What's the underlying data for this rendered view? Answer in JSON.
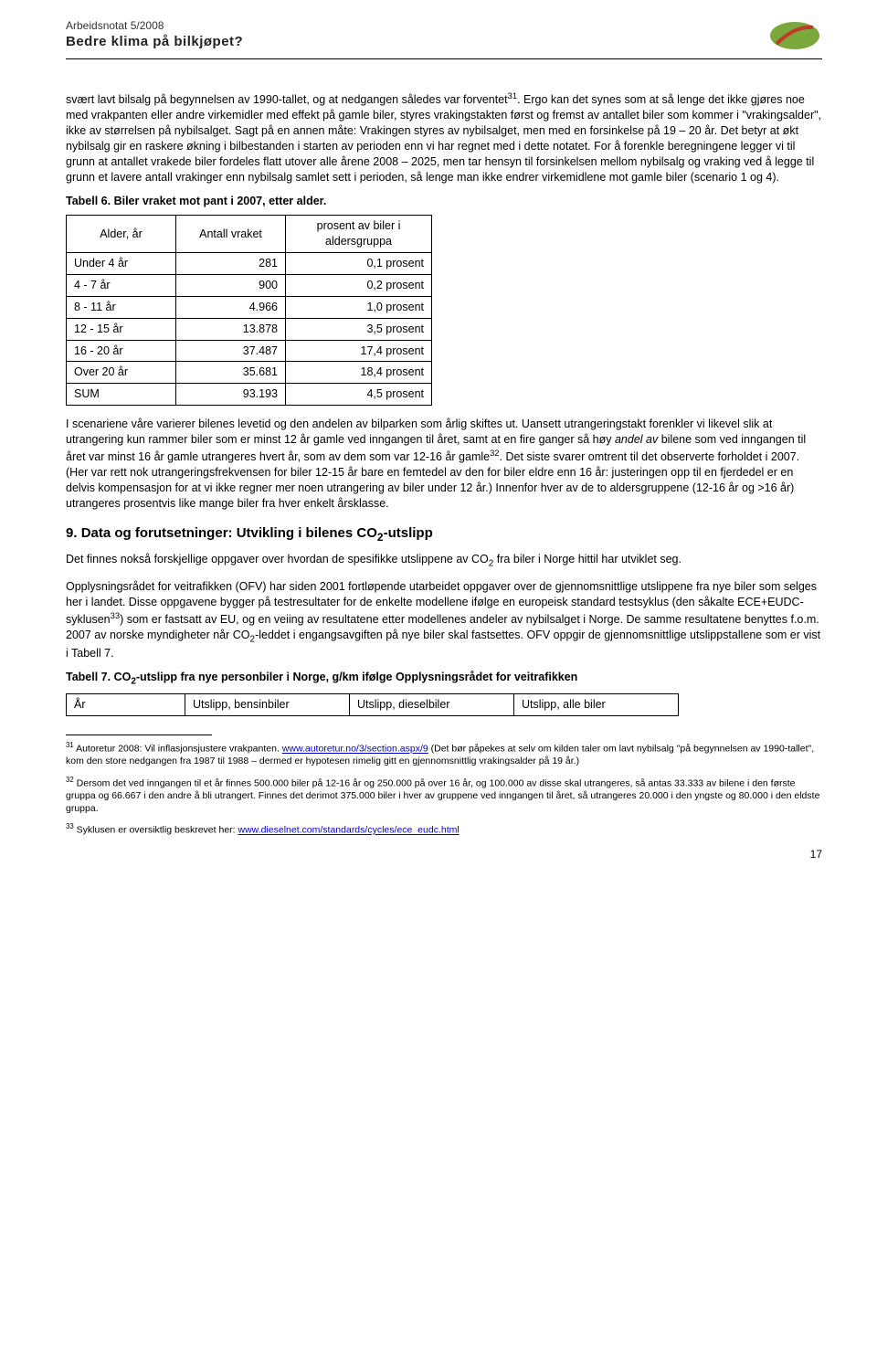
{
  "header": {
    "note": "Arbeidsnotat 5/2008",
    "title": "Bedre klima på bilkjøpet?"
  },
  "para1": "svært lavt bilsalg på begynnelsen av 1990-tallet, og at nedgangen således var forventet",
  "para1_fn": "31",
  "para1_tail": ". Ergo kan det synes som at så lenge det ikke gjøres noe med vrakpanten eller andre virkemidler med effekt på gamle biler, styres vrakingstakten først og fremst av antallet biler som kommer i \"vrakingsalder\", ikke av størrelsen på nybilsalget. Sagt på en annen måte: Vrakingen styres av nybilsalget, men med en forsinkelse på 19 – 20 år. Det betyr at økt nybilsalg gir en raskere økning i bilbestanden i starten av perioden enn vi har regnet med i dette notatet. For å forenkle beregningene legger vi til grunn at antallet vrakede biler fordeles flatt utover alle årene 2008 – 2025, men tar hensyn til forsinkelsen mellom nybilsalg og vraking ved å legge til grunn et lavere antall vrakinger enn nybilsalg samlet sett i perioden, så lenge man ikke endrer virkemidlene mot gamle biler (scenario 1 og 4).",
  "table6": {
    "title": "Tabell 6. Biler vraket mot pant i 2007, etter alder.",
    "headers": [
      "Alder, år",
      "Antall vraket",
      "prosent av biler i aldersgruppa"
    ],
    "rows": [
      [
        "Under 4 år",
        "281",
        "0,1 prosent"
      ],
      [
        "4 - 7 år",
        "900",
        "0,2 prosent"
      ],
      [
        "8 - 11 år",
        "4.966",
        "1,0 prosent"
      ],
      [
        "12 - 15 år",
        "13.878",
        "3,5 prosent"
      ],
      [
        "16 - 20 år",
        "37.487",
        "17,4 prosent"
      ],
      [
        "Over 20 år",
        "35.681",
        "18,4 prosent"
      ],
      [
        "SUM",
        "93.193",
        "4,5 prosent"
      ]
    ],
    "col_widths": [
      "120px",
      "120px",
      "160px"
    ]
  },
  "para2a": "I scenariene våre varierer bilenes levetid og den andelen av bilparken som årlig skiftes ut. Uansett utrangeringstakt forenkler vi likevel slik at utrangering kun rammer biler som er minst 12 år gamle ved inngangen til året, samt at en fire ganger så høy ",
  "para2_em": "andel av",
  "para2b": " bilene som ved inngangen til året var minst 16 år gamle utrangeres hvert år, som av dem som var 12-16 år gamle",
  "para2_fn": "32",
  "para2c": ". Det siste svarer omtrent til det observerte forholdet i 2007. (Her var rett nok utrangeringsfrekvensen for biler 12-15 år bare en femtedel av den for biler eldre enn 16 år: justeringen opp til en fjerdedel er en delvis kompensasjon for at vi ikke regner mer noen utrangering av biler under 12 år.) Innenfor hver av de to aldersgruppene (12-16 år og >16 år) utrangeres prosentvis like mange biler fra hver enkelt årsklasse.",
  "section9": {
    "num": "9.",
    "title_a": "Data og forutsetninger: Utvikling i bilenes CO",
    "title_b": "-utslipp"
  },
  "para3a": "Det finnes nokså forskjellige oppgaver over hvordan de spesifikke utslippene av CO",
  "para3b": " fra biler i Norge hittil har utviklet seg.",
  "para4a": "Opplysningsrådet for veitrafikken (OFV) har siden 2001 fortløpende utarbeidet oppgaver over de gjennomsnittlige utslippene fra nye biler som selges her i landet. Disse oppgavene bygger på testresultater for de enkelte modellene ifølge en europeisk standard testsyklus (den såkalte ECE+EUDC-syklusen",
  "para4_fn": "33",
  "para4b": ") som er fastsatt av EU, og en veiing av resultatene etter modellenes andeler av nybilsalget i Norge. De samme resultatene benyttes f.o.m. 2007 av norske myndigheter når CO",
  "para4c": "-leddet i engangsavgiften på nye biler skal fastsettes. OFV oppgir de gjennomsnittlige utslippstallene som er vist i Tabell 7.",
  "table7": {
    "title_a": "Tabell 7. CO",
    "title_b": "-utslipp fra nye personbiler i Norge, g/km ifølge Opplysningsrådet for veitrafikken",
    "headers": [
      "År",
      "Utslipp, bensinbiler",
      "Utslipp, dieselbiler",
      "Utslipp, alle biler"
    ],
    "col_widths": [
      "130px",
      "180px",
      "180px",
      "180px"
    ]
  },
  "footnotes": {
    "fn31_num": "31",
    "fn31a": " Autoretur 2008: Vil inflasjonsjustere vrakpanten. ",
    "fn31_link1": "www.autoretur.no/3/section.aspx/9",
    "fn31b": " (Det bør påpekes at selv om kilden taler om lavt nybilsalg \"på begynnelsen av 1990-tallet\", kom den store nedgangen fra 1987 til 1988 – dermed er hypotesen rimelig gitt en gjennomsnittlig vrakingsalder på 19 år.)",
    "fn32_num": "32",
    "fn32": " Dersom det ved inngangen til et år finnes 500.000 biler på 12-16 år og 250.000 på over 16 år, og 100.000 av disse skal utrangeres, så antas 33.333 av bilene i den første gruppa og 66.667 i den andre å bli utrangert. Finnes det derimot 375.000 biler i hver av gruppene ved inngangen til året, så utrangeres 20.000 i den yngste og 80.000 i den eldste gruppa.",
    "fn33_num": "33",
    "fn33a": " Syklusen er oversiktlig beskrevet her: ",
    "fn33_link": "www.dieselnet.com/standards/cycles/ece_eudc.html"
  },
  "page_number": "17"
}
